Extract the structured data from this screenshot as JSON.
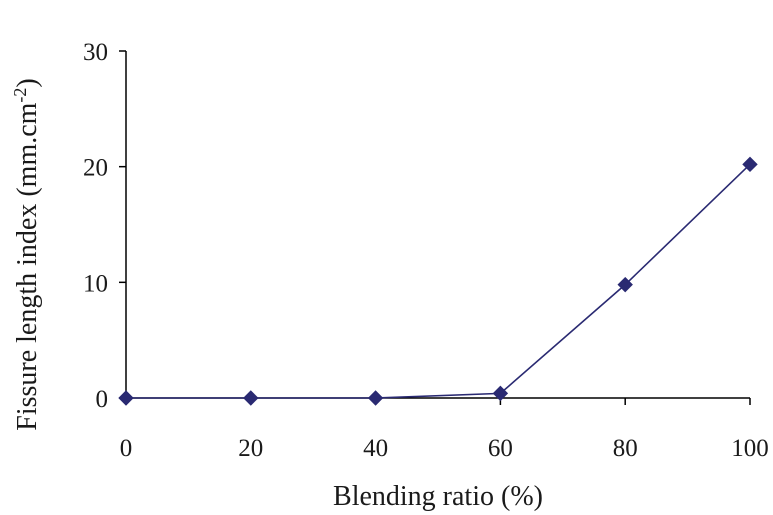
{
  "chart_data": {
    "type": "line",
    "x": [
      0,
      20,
      40,
      60,
      80,
      100
    ],
    "series": [
      {
        "values": [
          0,
          0,
          0,
          0.4,
          9.8,
          20.2
        ],
        "color": "#2a2a72",
        "marker": "diamond"
      }
    ],
    "xlabel": "Blending ratio (%)",
    "ylabel": {
      "text": "Fissure length index (mm.cm",
      "superscript": "-2",
      "suffix": ")"
    },
    "xlim": [
      0,
      100
    ],
    "ylim": [
      0,
      30
    ],
    "xticks": [
      0,
      20,
      40,
      60,
      80,
      100
    ],
    "yticks": [
      0,
      10,
      20,
      30
    ],
    "xtick_labels": [
      "0",
      "20",
      "40",
      "60",
      "80",
      "100"
    ],
    "ytick_labels": [
      "0",
      "10",
      "20",
      "30"
    ],
    "grid": false,
    "legend": "none"
  }
}
